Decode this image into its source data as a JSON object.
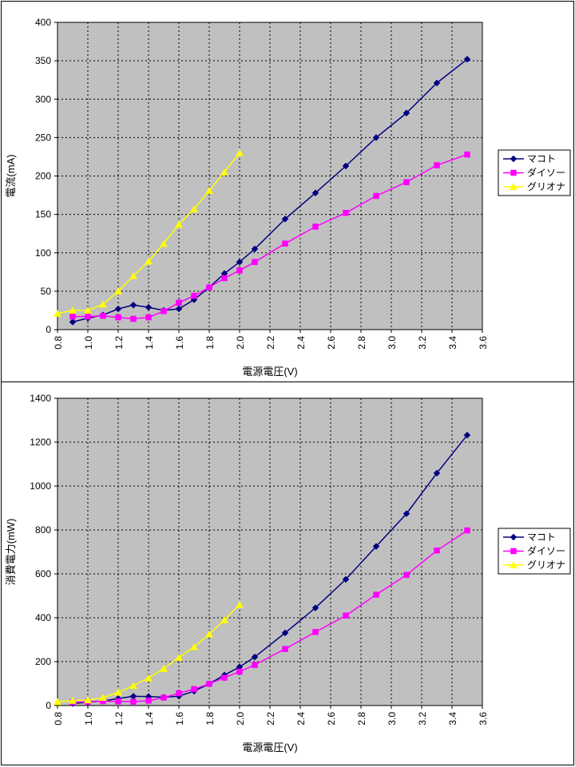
{
  "chart_data": [
    {
      "type": "line",
      "title": "",
      "xlabel": "電源電圧(V)",
      "ylabel": "電流(mA)",
      "xlim": [
        0.8,
        3.6
      ],
      "xstep": 0.2,
      "ylim": [
        0,
        400
      ],
      "ystep": 50,
      "grid": true,
      "plot_bg": "#c0c0c0",
      "legend_position": "right",
      "legend": [
        "マコト",
        "ダイソー",
        "グリオナ"
      ],
      "series": [
        {
          "name": "マコト",
          "color": "#000080",
          "marker": "diamond",
          "points": [
            [
              0.9,
              10
            ],
            [
              1.0,
              15
            ],
            [
              1.1,
              19
            ],
            [
              1.2,
              27
            ],
            [
              1.3,
              32
            ],
            [
              1.4,
              29
            ],
            [
              1.5,
              25
            ],
            [
              1.6,
              27
            ],
            [
              1.7,
              39
            ],
            [
              1.8,
              55
            ],
            [
              1.9,
              73
            ],
            [
              2.0,
              88
            ],
            [
              2.1,
              105
            ],
            [
              2.3,
              144
            ],
            [
              2.5,
              178
            ],
            [
              2.7,
              213
            ],
            [
              2.9,
              250
            ],
            [
              3.1,
              282
            ],
            [
              3.3,
              321
            ],
            [
              3.5,
              352
            ]
          ]
        },
        {
          "name": "ダイソー",
          "color": "#ff00ff",
          "marker": "square",
          "points": [
            [
              0.9,
              17
            ],
            [
              1.0,
              17
            ],
            [
              1.1,
              18
            ],
            [
              1.2,
              16
            ],
            [
              1.3,
              14
            ],
            [
              1.4,
              16
            ],
            [
              1.5,
              24
            ],
            [
              1.6,
              35
            ],
            [
              1.7,
              44
            ],
            [
              1.8,
              55
            ],
            [
              1.9,
              67
            ],
            [
              2.0,
              77
            ],
            [
              2.1,
              88
            ],
            [
              2.3,
              112
            ],
            [
              2.5,
              134
            ],
            [
              2.7,
              152
            ],
            [
              2.9,
              174
            ],
            [
              3.1,
              192
            ],
            [
              3.3,
              214
            ],
            [
              3.5,
              228
            ]
          ]
        },
        {
          "name": "グリオナ",
          "color": "#ffff00",
          "marker": "triangle",
          "points": [
            [
              0.8,
              21
            ],
            [
              0.9,
              25
            ],
            [
              1.0,
              25
            ],
            [
              1.1,
              33
            ],
            [
              1.2,
              50
            ],
            [
              1.3,
              70
            ],
            [
              1.4,
              89
            ],
            [
              1.5,
              112
            ],
            [
              1.6,
              137
            ],
            [
              1.7,
              157
            ],
            [
              1.8,
              181
            ],
            [
              1.9,
              205
            ],
            [
              2.0,
              230
            ]
          ]
        }
      ]
    },
    {
      "type": "line",
      "title": "",
      "xlabel": "電源電圧(V)",
      "ylabel": "消費電力(mW)",
      "xlim": [
        0.8,
        3.6
      ],
      "xstep": 0.2,
      "ylim": [
        0,
        1400
      ],
      "ystep": 200,
      "grid": true,
      "plot_bg": "#c0c0c0",
      "legend_position": "right",
      "legend": [
        "マコト",
        "ダイソー",
        "グリオナ"
      ],
      "series": [
        {
          "name": "マコト",
          "color": "#000080",
          "marker": "diamond",
          "points": [
            [
              0.9,
              9
            ],
            [
              1.0,
              15
            ],
            [
              1.1,
              21
            ],
            [
              1.2,
              32
            ],
            [
              1.3,
              42
            ],
            [
              1.4,
              41
            ],
            [
              1.5,
              38
            ],
            [
              1.6,
              43
            ],
            [
              1.7,
              66
            ],
            [
              1.8,
              99
            ],
            [
              1.9,
              139
            ],
            [
              2.0,
              176
            ],
            [
              2.1,
              221
            ],
            [
              2.3,
              331
            ],
            [
              2.5,
              445
            ],
            [
              2.7,
              575
            ],
            [
              2.9,
              725
            ],
            [
              3.1,
              874
            ],
            [
              3.3,
              1059
            ],
            [
              3.5,
              1232
            ]
          ]
        },
        {
          "name": "ダイソー",
          "color": "#ff00ff",
          "marker": "square",
          "points": [
            [
              0.9,
              15
            ],
            [
              1.0,
              17
            ],
            [
              1.1,
              20
            ],
            [
              1.2,
              19
            ],
            [
              1.3,
              18
            ],
            [
              1.4,
              22
            ],
            [
              1.5,
              36
            ],
            [
              1.6,
              56
            ],
            [
              1.7,
              75
            ],
            [
              1.8,
              99
            ],
            [
              1.9,
              127
            ],
            [
              2.0,
              154
            ],
            [
              2.1,
              185
            ],
            [
              2.3,
              258
            ],
            [
              2.5,
              335
            ],
            [
              2.7,
              410
            ],
            [
              2.9,
              505
            ],
            [
              3.1,
              595
            ],
            [
              3.3,
              706
            ],
            [
              3.5,
              798
            ]
          ]
        },
        {
          "name": "グリオナ",
          "color": "#ffff00",
          "marker": "triangle",
          "points": [
            [
              0.8,
              17
            ],
            [
              0.9,
              23
            ],
            [
              1.0,
              25
            ],
            [
              1.1,
              36
            ],
            [
              1.2,
              60
            ],
            [
              1.3,
              91
            ],
            [
              1.4,
              125
            ],
            [
              1.5,
              168
            ],
            [
              1.6,
              219
            ],
            [
              1.7,
              267
            ],
            [
              1.8,
              326
            ],
            [
              1.9,
              390
            ],
            [
              2.0,
              460
            ]
          ]
        }
      ]
    }
  ]
}
